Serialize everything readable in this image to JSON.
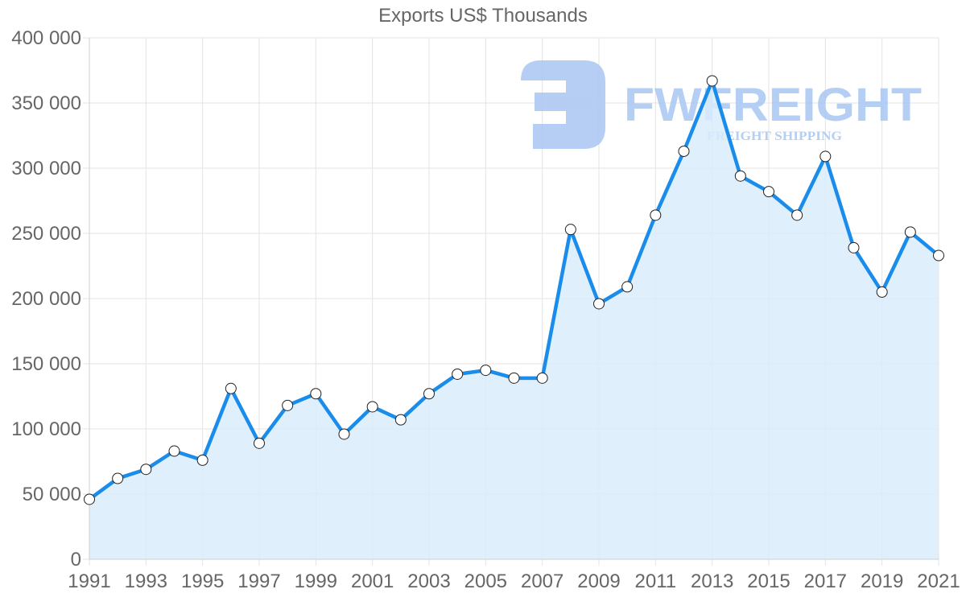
{
  "chart_data": {
    "type": "line",
    "title": "Exports US$ Thousands",
    "xlabel": "",
    "ylabel": "",
    "x": [
      1991,
      1992,
      1993,
      1994,
      1995,
      1996,
      1997,
      1998,
      1999,
      2000,
      2001,
      2002,
      2003,
      2004,
      2005,
      2006,
      2007,
      2008,
      2009,
      2010,
      2011,
      2012,
      2013,
      2014,
      2015,
      2016,
      2017,
      2018,
      2019,
      2020,
      2021
    ],
    "series": [
      {
        "name": "Exports US$ Thousands",
        "values": [
          46000,
          62000,
          69000,
          83000,
          76000,
          131000,
          89000,
          118000,
          127000,
          96000,
          117000,
          107000,
          127000,
          142000,
          145000,
          139000,
          139000,
          253000,
          196000,
          209000,
          264000,
          313000,
          367000,
          294000,
          282000,
          264000,
          309000,
          239000,
          205000,
          251000,
          233000
        ],
        "color": "#1a8ceb",
        "fill": "#d9ecfc"
      }
    ],
    "ylim": [
      0,
      400000
    ],
    "yticks": [
      0,
      50000,
      100000,
      150000,
      200000,
      250000,
      300000,
      350000,
      400000
    ],
    "ytick_labels": [
      "0",
      "50 000",
      "100 000",
      "150 000",
      "200 000",
      "250 000",
      "300 000",
      "350 000",
      "400 000"
    ],
    "xtick_labels": [
      "1991",
      "1993",
      "1995",
      "1997",
      "1999",
      "2001",
      "2003",
      "2005",
      "2007",
      "2009",
      "2011",
      "2013",
      "2015",
      "2017",
      "2019",
      "2021"
    ],
    "grid": true,
    "legend": "none",
    "area_fill": true
  },
  "watermark": {
    "brand": "FWFREIGHT",
    "tagline": "FREIGHT SHIPPING",
    "color": "#a9c6f2"
  }
}
